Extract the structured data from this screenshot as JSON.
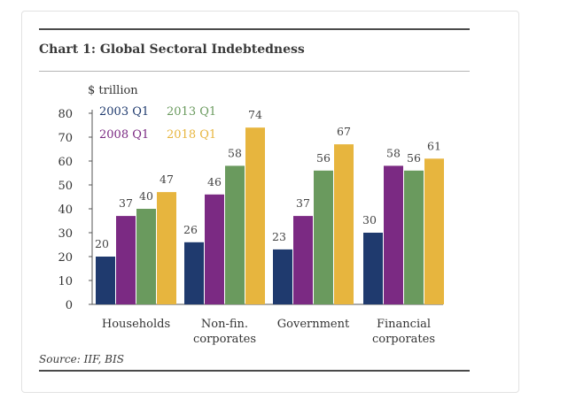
{
  "header": {
    "title": "Chart 1: Global Sectoral Indebtedness"
  },
  "footer": {
    "source": "Source: IIF, BIS"
  },
  "chart_data": {
    "type": "bar",
    "title": "Chart 1: Global Sectoral Indebtedness",
    "ylabel": "$ trillion",
    "xlabel": "",
    "ylim": [
      0,
      80
    ],
    "yticks": [
      0,
      10,
      20,
      30,
      40,
      50,
      60,
      70,
      80
    ],
    "grid": false,
    "legend_position": "top-left",
    "categories": [
      "Households",
      "Non-fin.\ncorporates",
      "Government",
      "Financial\ncorporates"
    ],
    "series": [
      {
        "name": "2003 Q1",
        "color": "#1f3a6e",
        "values": [
          20,
          26,
          23,
          30
        ]
      },
      {
        "name": "2008 Q1",
        "color": "#7b2a83",
        "values": [
          37,
          46,
          37,
          58
        ]
      },
      {
        "name": "2013 Q1",
        "color": "#6a9a5e",
        "values": [
          40,
          58,
          56,
          56
        ]
      },
      {
        "name": "2018 Q1",
        "color": "#e7b53e",
        "values": [
          47,
          74,
          67,
          61
        ]
      }
    ]
  }
}
